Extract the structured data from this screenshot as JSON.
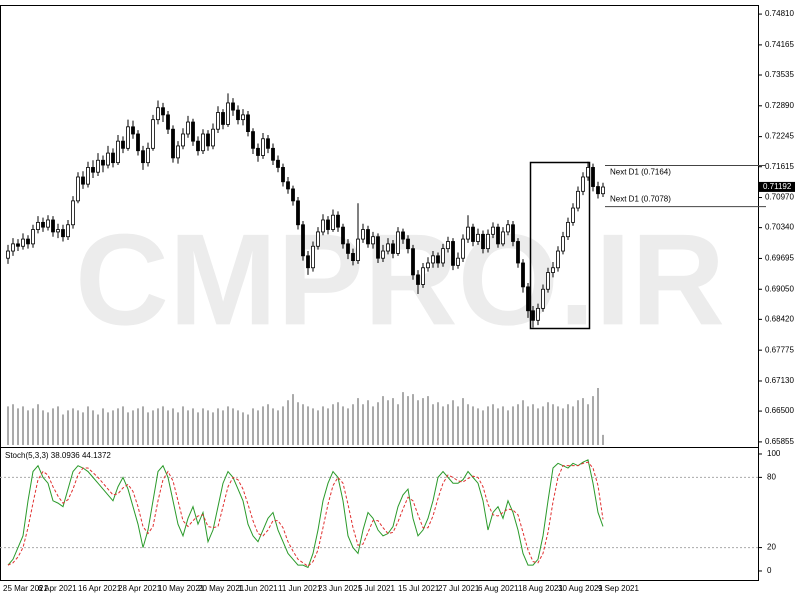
{
  "chart_data": {
    "type": "candlestick",
    "watermark": "CMPRO.IR",
    "categories": [
      "25 Mar 2021",
      null,
      null,
      null,
      null,
      null,
      null,
      "6 Apr 2021",
      null,
      null,
      null,
      null,
      null,
      null,
      null,
      "16 Apr 2021",
      null,
      null,
      null,
      null,
      null,
      null,
      null,
      "28 Apr 2021",
      null,
      null,
      null,
      null,
      null,
      null,
      null,
      "10 May 2021",
      null,
      null,
      null,
      null,
      null,
      null,
      null,
      "20 May 2021",
      null,
      null,
      null,
      null,
      null,
      null,
      null,
      "1 Jun 2021",
      null,
      null,
      null,
      null,
      null,
      null,
      null,
      "11 Jun 2021",
      null,
      null,
      null,
      null,
      null,
      null,
      null,
      "23 Jun 2021",
      null,
      null,
      null,
      null,
      null,
      null,
      null,
      "5 Jul 2021",
      null,
      null,
      null,
      null,
      null,
      null,
      null,
      "15 Jul 2021",
      null,
      null,
      null,
      null,
      null,
      null,
      null,
      "27 Jul 2021",
      null,
      null,
      null,
      null,
      null,
      null,
      null,
      "6 Aug 2021",
      null,
      null,
      null,
      null,
      null,
      null,
      null,
      "18 Aug 2021",
      null,
      null,
      null,
      null,
      null,
      null,
      null,
      "30 Aug 2021",
      null,
      null,
      null,
      null,
      null,
      null,
      null,
      "9 Sep 2021"
    ],
    "open": [
      0.697,
      0.6985,
      0.7,
      0.6995,
      0.701,
      0.7,
      0.703,
      0.7045,
      0.7035,
      0.705,
      0.7025,
      0.703,
      0.7015,
      0.704,
      0.709,
      0.714,
      0.7125,
      0.716,
      0.715,
      0.7175,
      0.7165,
      0.719,
      0.717,
      0.7215,
      0.72,
      0.7245,
      0.723,
      0.7195,
      0.717,
      0.72,
      0.726,
      0.7285,
      0.727,
      0.724,
      0.718,
      0.7205,
      0.723,
      0.7255,
      0.7215,
      0.7195,
      0.723,
      0.7205,
      0.724,
      0.7275,
      0.725,
      0.7295,
      0.728,
      0.726,
      0.727,
      0.7235,
      0.72,
      0.7185,
      0.722,
      0.72,
      0.7175,
      0.716,
      0.713,
      0.7115,
      0.709,
      0.704,
      0.6975,
      0.695,
      0.6995,
      0.7025,
      0.705,
      0.703,
      0.706,
      0.7035,
      0.7,
      0.698,
      0.6965,
      0.701,
      0.703,
      0.7,
      0.7015,
      0.697,
      0.6985,
      0.7,
      0.698,
      0.7025,
      0.701,
      0.699,
      0.6935,
      0.6915,
      0.695,
      0.696,
      0.6975,
      0.696,
      0.699,
      0.7005,
      0.6955,
      0.697,
      0.701,
      0.7035,
      0.7005,
      0.702,
      0.699,
      0.702,
      0.7035,
      0.7,
      0.7025,
      0.704,
      0.7005,
      0.696,
      0.691,
      0.686,
      0.684,
      0.6865,
      0.6905,
      0.694,
      0.695,
      0.6985,
      0.7015,
      0.7045,
      0.7075,
      0.711,
      0.714,
      0.716,
      0.712,
      0.7105
    ],
    "high": [
      0.6998,
      0.7012,
      0.701,
      0.7022,
      0.7018,
      0.704,
      0.7058,
      0.7055,
      0.706,
      0.7058,
      0.7042,
      0.704,
      0.705,
      0.71,
      0.715,
      0.7152,
      0.7172,
      0.7175,
      0.719,
      0.7185,
      0.7205,
      0.72,
      0.7228,
      0.7225,
      0.726,
      0.7258,
      0.7238,
      0.7205,
      0.7212,
      0.727,
      0.73,
      0.7295,
      0.7278,
      0.7248,
      0.7215,
      0.7242,
      0.7268,
      0.7262,
      0.7225,
      0.724,
      0.7238,
      0.7252,
      0.7288,
      0.7282,
      0.7315,
      0.7305,
      0.729,
      0.7282,
      0.7278,
      0.7242,
      0.721,
      0.7232,
      0.7228,
      0.721,
      0.7185,
      0.7168,
      0.714,
      0.7122,
      0.7098,
      0.7048,
      0.6985,
      0.7005,
      0.7035,
      0.7062,
      0.7058,
      0.7072,
      0.7068,
      0.7042,
      0.701,
      0.699,
      0.7085,
      0.7042,
      0.7038,
      0.7025,
      0.7022,
      0.6998,
      0.7012,
      0.7008,
      0.7035,
      0.7032,
      0.7018,
      0.6998,
      0.6945,
      0.696,
      0.6972,
      0.6985,
      0.6982,
      0.7,
      0.7015,
      0.7012,
      0.6982,
      0.702,
      0.706,
      0.7042,
      0.7032,
      0.7028,
      0.703,
      0.7045,
      0.7042,
      0.7035,
      0.705,
      0.7048,
      0.7012,
      0.6968,
      0.6918,
      0.687,
      0.6875,
      0.6915,
      0.695,
      0.6962,
      0.6995,
      0.7025,
      0.7055,
      0.7085,
      0.712,
      0.715,
      0.7172,
      0.7168,
      0.713,
      0.7128
    ],
    "low": [
      0.6958,
      0.6975,
      0.6985,
      0.6988,
      0.699,
      0.6992,
      0.7022,
      0.7025,
      0.7028,
      0.7015,
      0.7012,
      0.7005,
      0.7008,
      0.7032,
      0.7085,
      0.7115,
      0.7118,
      0.7138,
      0.7142,
      0.715,
      0.7158,
      0.716,
      0.7165,
      0.719,
      0.7195,
      0.722,
      0.7185,
      0.7155,
      0.7162,
      0.7195,
      0.725,
      0.7255,
      0.723,
      0.717,
      0.7168,
      0.7198,
      0.7222,
      0.7205,
      0.7185,
      0.7188,
      0.7195,
      0.7198,
      0.7232,
      0.724,
      0.7245,
      0.7268,
      0.725,
      0.7248,
      0.7225,
      0.7188,
      0.7172,
      0.7178,
      0.719,
      0.7165,
      0.715,
      0.712,
      0.7105,
      0.708,
      0.703,
      0.6965,
      0.6935,
      0.6942,
      0.6988,
      0.7018,
      0.702,
      0.7025,
      0.7025,
      0.699,
      0.6968,
      0.6955,
      0.6958,
      0.7002,
      0.6992,
      0.699,
      0.696,
      0.6962,
      0.6978,
      0.697,
      0.6975,
      0.7,
      0.698,
      0.6925,
      0.6895,
      0.6908,
      0.6942,
      0.695,
      0.695,
      0.6952,
      0.6982,
      0.6945,
      0.6948,
      0.6962,
      0.7002,
      0.6995,
      0.6998,
      0.698,
      0.6982,
      0.7012,
      0.6992,
      0.6995,
      0.7018,
      0.6995,
      0.695,
      0.6898,
      0.6845,
      0.6825,
      0.683,
      0.6858,
      0.6898,
      0.693,
      0.6942,
      0.6978,
      0.7008,
      0.7038,
      0.7068,
      0.7102,
      0.7132,
      0.711,
      0.7095,
      0.7098
    ],
    "close": [
      0.6985,
      0.7,
      0.6995,
      0.701,
      0.7,
      0.703,
      0.7045,
      0.7035,
      0.705,
      0.7025,
      0.703,
      0.7015,
      0.704,
      0.709,
      0.714,
      0.7125,
      0.716,
      0.715,
      0.7175,
      0.7165,
      0.719,
      0.717,
      0.7215,
      0.72,
      0.7245,
      0.723,
      0.7195,
      0.717,
      0.72,
      0.726,
      0.7285,
      0.727,
      0.724,
      0.718,
      0.7205,
      0.723,
      0.7255,
      0.7215,
      0.7195,
      0.723,
      0.7205,
      0.724,
      0.7275,
      0.725,
      0.7295,
      0.728,
      0.726,
      0.727,
      0.7235,
      0.72,
      0.7185,
      0.722,
      0.72,
      0.7175,
      0.716,
      0.713,
      0.7115,
      0.709,
      0.704,
      0.6975,
      0.695,
      0.6995,
      0.7025,
      0.705,
      0.703,
      0.706,
      0.7035,
      0.7,
      0.698,
      0.6965,
      0.701,
      0.703,
      0.7,
      0.7015,
      0.697,
      0.6985,
      0.7,
      0.698,
      0.7025,
      0.701,
      0.699,
      0.6935,
      0.6915,
      0.695,
      0.696,
      0.6975,
      0.696,
      0.699,
      0.7005,
      0.6955,
      0.697,
      0.701,
      0.7035,
      0.7005,
      0.702,
      0.699,
      0.702,
      0.7035,
      0.7,
      0.7025,
      0.704,
      0.7005,
      0.696,
      0.691,
      0.686,
      0.684,
      0.6865,
      0.6905,
      0.694,
      0.695,
      0.6985,
      0.7015,
      0.7045,
      0.7075,
      0.711,
      0.714,
      0.716,
      0.712,
      0.7105,
      0.7119
    ],
    "volume": [
      38,
      40,
      36,
      38,
      34,
      36,
      40,
      34,
      32,
      36,
      38,
      30,
      34,
      36,
      34,
      32,
      38,
      34,
      30,
      36,
      32,
      34,
      36,
      38,
      32,
      34,
      36,
      38,
      32,
      34,
      36,
      38,
      34,
      36,
      32,
      38,
      34,
      36,
      32,
      36,
      34,
      32,
      36,
      34,
      38,
      36,
      34,
      32,
      30,
      36,
      34,
      38,
      40,
      36,
      34,
      38,
      44,
      50,
      42,
      40,
      38,
      36,
      34,
      38,
      36,
      40,
      42,
      38,
      36,
      40,
      46,
      40,
      44,
      38,
      42,
      48,
      44,
      46,
      40,
      52,
      48,
      50,
      44,
      46,
      48,
      40,
      42,
      38,
      40,
      44,
      38,
      46,
      40,
      38,
      36,
      34,
      38,
      40,
      36,
      38,
      34,
      38,
      40,
      44,
      38,
      40,
      36,
      38,
      42,
      40,
      38,
      36,
      40,
      38,
      44,
      46,
      40,
      48,
      56,
      10
    ],
    "ylim": [
      0.6579,
      0.75
    ],
    "yticks": [
      {
        "value": 0.7481,
        "label": "0.74810"
      },
      0.74165,
      0.73535,
      {
        "value": 0.7289,
        "label": "0.72890"
      },
      0.72245,
      0.71615,
      {
        "value": 0.7097,
        "label": "0.70970"
      },
      {
        "value": 0.7034,
        "label": "0.70340"
      },
      0.69695,
      {
        "value": 0.6905,
        "label": "0.69050"
      },
      {
        "value": 0.6842,
        "label": "0.68420"
      },
      0.67775,
      {
        "value": 0.6713,
        "label": "0.67130"
      },
      {
        "value": 0.665,
        "label": "0.66500"
      },
      0.65855
    ],
    "current_price": 0.71192,
    "levels": [
      {
        "value": 0.7164,
        "label": "Next D1 (0.7164)"
      },
      {
        "value": 0.7078,
        "label": "Next D1 (0.7078)"
      }
    ],
    "indicator": {
      "type": "line",
      "title": "Stoch(5,3,3) 38.0936 44.1372",
      "ylim": [
        -6,
        103.4
      ],
      "yticks": [
        100,
        80,
        20,
        0
      ],
      "levels": [
        80,
        20
      ],
      "k": {
        "color": "#2a9a2a",
        "values": [
          5,
          10,
          20,
          30,
          60,
          85,
          90,
          80,
          75,
          60,
          58,
          55,
          70,
          85,
          90,
          88,
          85,
          80,
          75,
          70,
          65,
          60,
          72,
          80,
          70,
          55,
          40,
          20,
          35,
          60,
          85,
          90,
          80,
          60,
          40,
          30,
          45,
          55,
          40,
          50,
          25,
          35,
          55,
          75,
          85,
          80,
          70,
          60,
          40,
          30,
          25,
          35,
          45,
          50,
          35,
          25,
          15,
          10,
          5,
          5,
          3,
          15,
          35,
          60,
          75,
          85,
          80,
          60,
          30,
          20,
          15,
          35,
          50,
          45,
          35,
          30,
          32,
          38,
          55,
          65,
          70,
          45,
          30,
          35,
          45,
          60,
          80,
          85,
          80,
          75,
          75,
          78,
          85,
          80,
          75,
          60,
          35,
          50,
          55,
          45,
          60,
          50,
          35,
          15,
          5,
          5,
          10,
          30,
          60,
          88,
          92,
          90,
          88,
          92,
          90,
          93,
          95,
          75,
          50,
          38.0936
        ]
      },
      "d": {
        "color": "#e03030",
        "values": [
          5,
          7,
          12,
          20,
          37,
          58,
          78,
          85,
          82,
          72,
          64,
          58,
          61,
          70,
          82,
          88,
          88,
          84,
          80,
          75,
          70,
          65,
          66,
          71,
          74,
          68,
          55,
          38,
          32,
          38,
          60,
          78,
          85,
          77,
          60,
          43,
          38,
          43,
          47,
          48,
          38,
          37,
          38,
          55,
          72,
          80,
          78,
          70,
          57,
          43,
          32,
          30,
          35,
          43,
          43,
          37,
          25,
          17,
          10,
          7,
          4,
          8,
          18,
          37,
          57,
          73,
          80,
          75,
          57,
          37,
          22,
          23,
          33,
          43,
          43,
          37,
          32,
          33,
          42,
          53,
          63,
          60,
          48,
          37,
          37,
          47,
          62,
          75,
          82,
          80,
          77,
          76,
          79,
          81,
          80,
          72,
          57,
          48,
          47,
          50,
          53,
          52,
          48,
          33,
          18,
          8,
          7,
          15,
          33,
          59,
          80,
          90,
          90,
          90,
          90,
          92,
          93,
          88,
          73,
          44.1372
        ]
      }
    }
  }
}
